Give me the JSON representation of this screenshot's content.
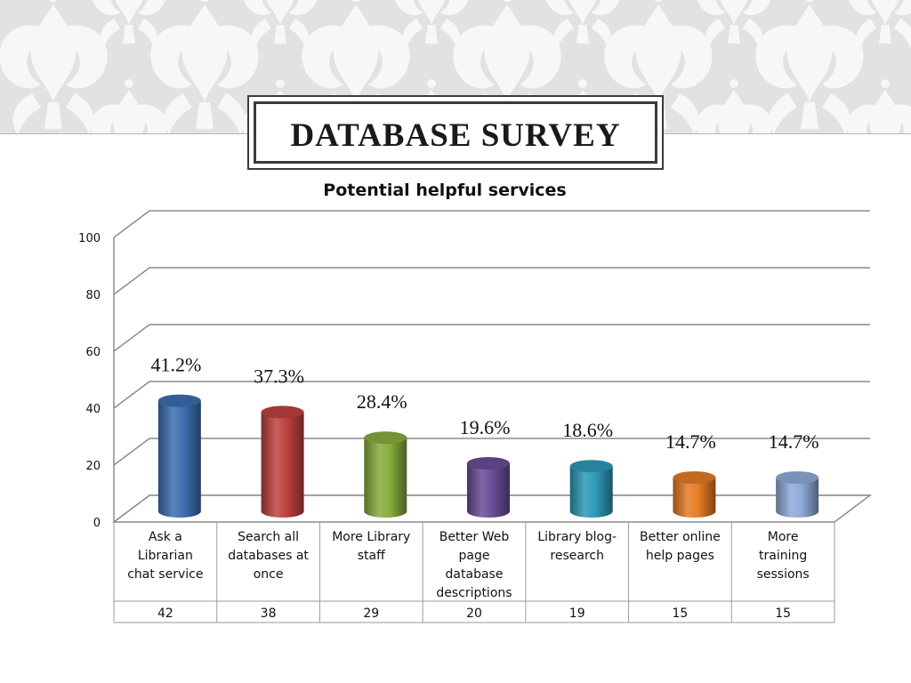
{
  "slide": {
    "title": "DATABASE SURVEY"
  },
  "colors": {
    "banner_bg": "#e2e2e4",
    "banner_pattern": "#f7f7f8",
    "grid": "#8c8c8c"
  },
  "chart_data": {
    "type": "bar",
    "title": "Potential helpful services",
    "categories": [
      "Ask a Librarian chat service",
      "Search all databases at once",
      "More Library staff",
      "Better Web page database descriptions",
      "Library blog-research",
      "Better online help pages",
      "More training sessions"
    ],
    "category_lines": [
      [
        "Ask a",
        "Librarian",
        "chat service"
      ],
      [
        "Search all",
        "databases at",
        "once"
      ],
      [
        "More Library",
        "staff"
      ],
      [
        "Better Web",
        "page",
        "database",
        "descriptions"
      ],
      [
        "Library blog-",
        "research"
      ],
      [
        "Better online",
        "help pages"
      ],
      [
        "More",
        "training",
        "sessions"
      ]
    ],
    "values": [
      42,
      38,
      29,
      20,
      19,
      15,
      15
    ],
    "data_labels": [
      "41.2%",
      "37.3%",
      "28.4%",
      "19.6%",
      "18.6%",
      "14.7%",
      "14.7%"
    ],
    "bar_colors": [
      "#3d6fb0",
      "#bf4240",
      "#87ad3e",
      "#6b4d98",
      "#2e9ab8",
      "#e57c24",
      "#8faad9"
    ],
    "ylim": [
      0,
      100
    ],
    "yticks": [
      0,
      20,
      40,
      60,
      80,
      100
    ],
    "grid": true,
    "data_table": true,
    "xlabel": "",
    "ylabel": ""
  }
}
